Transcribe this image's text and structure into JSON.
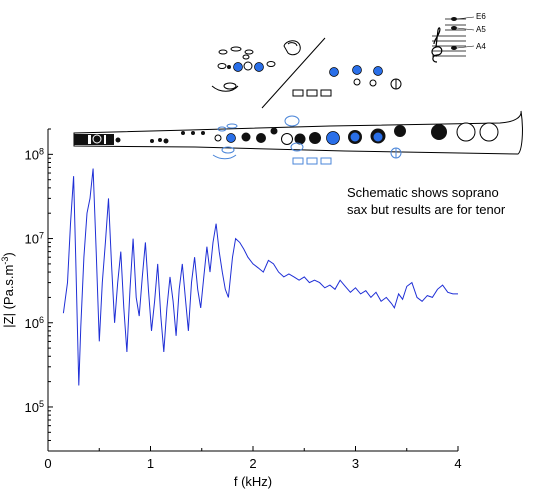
{
  "chart_data": {
    "type": "line",
    "xlabel": "f (kHz)",
    "ylabel_main": "|Z| (Pa.s.m",
    "ylabel_sup": "-3",
    "ylabel_close": ")",
    "xlim": [
      0,
      4
    ],
    "ylim": [
      30000,
      200000000
    ],
    "yscale": "log",
    "x_ticks": [
      {
        "value": 0,
        "label": "0"
      },
      {
        "value": 1,
        "label": "1"
      },
      {
        "value": 2,
        "label": "2"
      },
      {
        "value": 3,
        "label": "3"
      },
      {
        "value": 4,
        "label": "4"
      }
    ],
    "y_ticks": [
      {
        "value": 100000,
        "base": "10",
        "exp": "5"
      },
      {
        "value": 1000000,
        "base": "10",
        "exp": "6"
      },
      {
        "value": 10000000,
        "base": "10",
        "exp": "7"
      },
      {
        "value": 100000000,
        "base": "10",
        "exp": "8"
      }
    ],
    "line_color": "#1f2fd6",
    "series": [
      {
        "points": [
          [
            0.15,
            1300000
          ],
          [
            0.19,
            3000000
          ],
          [
            0.22,
            15000000
          ],
          [
            0.25,
            55000000
          ],
          [
            0.27,
            6000000
          ],
          [
            0.3,
            180000
          ],
          [
            0.32,
            900000
          ],
          [
            0.35,
            6000000
          ],
          [
            0.38,
            20000000
          ],
          [
            0.41,
            30000000
          ],
          [
            0.44,
            68000000
          ],
          [
            0.47,
            7000000
          ],
          [
            0.5,
            600000
          ],
          [
            0.53,
            3000000
          ],
          [
            0.56,
            9000000
          ],
          [
            0.59,
            30000000
          ],
          [
            0.62,
            5000000
          ],
          [
            0.65,
            1000000
          ],
          [
            0.68,
            3000000
          ],
          [
            0.71,
            7000000
          ],
          [
            0.74,
            1500000
          ],
          [
            0.77,
            450000
          ],
          [
            0.8,
            2500000
          ],
          [
            0.83,
            10000000
          ],
          [
            0.86,
            2000000
          ],
          [
            0.89,
            1200000
          ],
          [
            0.92,
            3500000
          ],
          [
            0.95,
            9000000
          ],
          [
            0.98,
            2500000
          ],
          [
            1.01,
            800000
          ],
          [
            1.04,
            1800000
          ],
          [
            1.07,
            5000000
          ],
          [
            1.1,
            1200000
          ],
          [
            1.13,
            450000
          ],
          [
            1.16,
            1500000
          ],
          [
            1.19,
            3500000
          ],
          [
            1.22,
            1800000
          ],
          [
            1.25,
            700000
          ],
          [
            1.28,
            2500000
          ],
          [
            1.31,
            5000000
          ],
          [
            1.34,
            2000000
          ],
          [
            1.37,
            800000
          ],
          [
            1.4,
            3000000
          ],
          [
            1.43,
            6000000
          ],
          [
            1.46,
            2500000
          ],
          [
            1.49,
            1500000
          ],
          [
            1.52,
            3500000
          ],
          [
            1.55,
            8000000
          ],
          [
            1.58,
            4000000
          ],
          [
            1.61,
            9000000
          ],
          [
            1.64,
            15000000
          ],
          [
            1.67,
            7000000
          ],
          [
            1.7,
            4000000
          ],
          [
            1.73,
            2500000
          ],
          [
            1.76,
            2000000
          ],
          [
            1.8,
            6000000
          ],
          [
            1.83,
            10000000
          ],
          [
            1.87,
            9000000
          ],
          [
            1.91,
            7500000
          ],
          [
            1.95,
            6000000
          ],
          [
            2.0,
            5000000
          ],
          [
            2.05,
            4500000
          ],
          [
            2.1,
            4000000
          ],
          [
            2.15,
            5500000
          ],
          [
            2.2,
            5000000
          ],
          [
            2.25,
            4000000
          ],
          [
            2.3,
            3500000
          ],
          [
            2.35,
            3800000
          ],
          [
            2.4,
            3500000
          ],
          [
            2.45,
            3200000
          ],
          [
            2.5,
            3500000
          ],
          [
            2.55,
            3000000
          ],
          [
            2.6,
            3200000
          ],
          [
            2.65,
            3000000
          ],
          [
            2.7,
            2600000
          ],
          [
            2.75,
            2800000
          ],
          [
            2.8,
            2500000
          ],
          [
            2.85,
            3200000
          ],
          [
            2.9,
            2700000
          ],
          [
            2.95,
            2300000
          ],
          [
            3.0,
            2600000
          ],
          [
            3.05,
            2200000
          ],
          [
            3.1,
            2400000
          ],
          [
            3.15,
            2000000
          ],
          [
            3.2,
            2300000
          ],
          [
            3.25,
            1800000
          ],
          [
            3.3,
            2000000
          ],
          [
            3.35,
            1700000
          ],
          [
            3.38,
            1500000
          ],
          [
            3.42,
            2200000
          ],
          [
            3.46,
            1900000
          ],
          [
            3.5,
            2700000
          ],
          [
            3.55,
            3000000
          ],
          [
            3.6,
            2000000
          ],
          [
            3.65,
            1800000
          ],
          [
            3.7,
            2100000
          ],
          [
            3.75,
            2000000
          ],
          [
            3.8,
            2500000
          ],
          [
            3.85,
            2800000
          ],
          [
            3.9,
            2300000
          ],
          [
            3.95,
            2200000
          ],
          [
            4.0,
            2200000
          ]
        ]
      }
    ],
    "annotation": {
      "line1": "Schematic shows soprano",
      "line2": "sax but results are for tenor"
    },
    "note_labels": {
      "top": "E6",
      "middle": "A5",
      "bottom": "A4"
    }
  }
}
